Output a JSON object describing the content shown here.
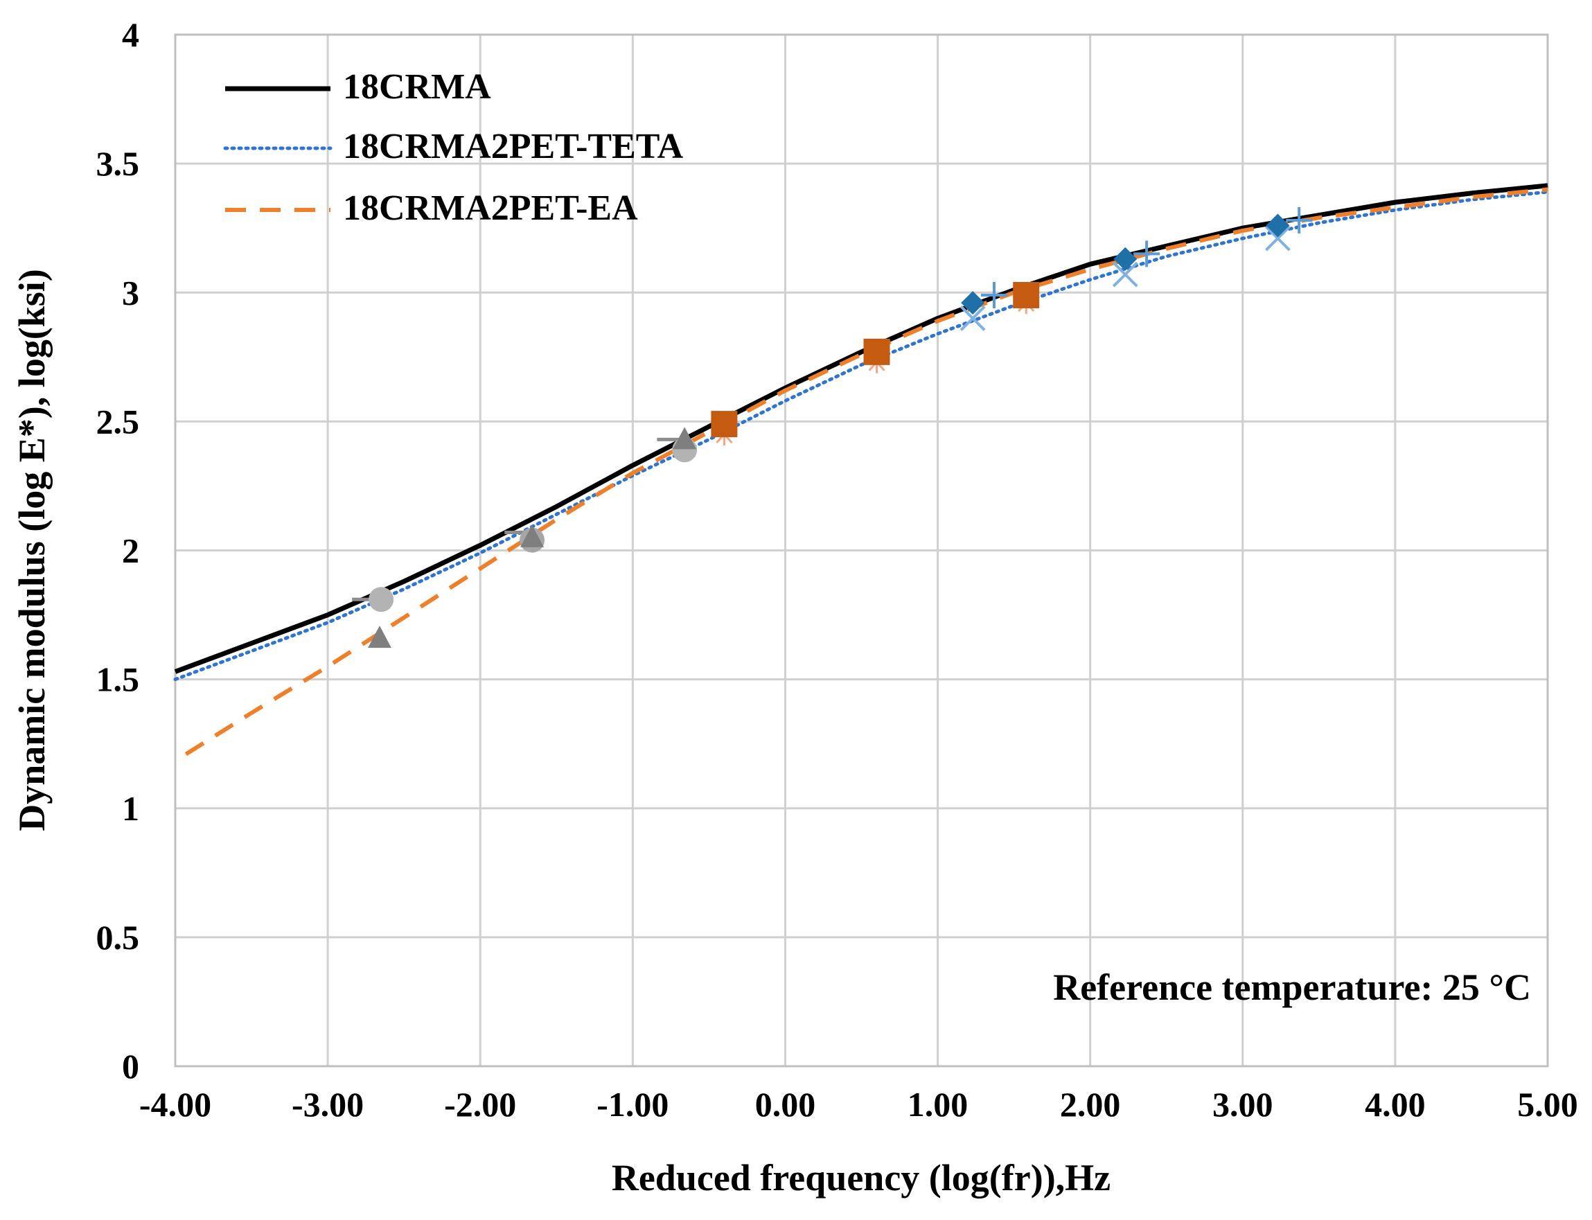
{
  "chart_data": {
    "type": "line",
    "title": "",
    "xlabel": "Reduced frequency (log(fr)),Hz",
    "ylabel": "Dynamic modulus (log E*), log(ksi)",
    "xlim": [
      -4,
      5
    ],
    "ylim": [
      0,
      4
    ],
    "x_ticks": [
      "-4.00",
      "-3.00",
      "-2.00",
      "-1.00",
      "0.00",
      "1.00",
      "2.00",
      "3.00",
      "4.00",
      "5.00"
    ],
    "y_ticks": [
      "0",
      "0.5",
      "1",
      "1.5",
      "2",
      "2.5",
      "3",
      "3.5",
      "4"
    ],
    "grid": true,
    "legend_position": "top-left",
    "annotation": "Reference temperature: 25 °C",
    "series": [
      {
        "name": "18CRMA",
        "color": "#000000",
        "style": "solid",
        "x": [
          -4,
          -3.5,
          -3,
          -2.5,
          -2,
          -1.5,
          -1,
          -0.5,
          0,
          0.5,
          1,
          1.5,
          2,
          2.5,
          3,
          3.5,
          4,
          4.5,
          5
        ],
        "y": [
          1.53,
          1.64,
          1.75,
          1.88,
          2.02,
          2.17,
          2.33,
          2.48,
          2.63,
          2.77,
          2.9,
          3.01,
          3.11,
          3.18,
          3.25,
          3.3,
          3.35,
          3.385,
          3.415
        ]
      },
      {
        "name": "18CRMA2PET-TETA",
        "color": "#2f75d0",
        "style": "dotted",
        "x": [
          -4,
          -3.5,
          -3,
          -2.5,
          -2,
          -1.5,
          -1,
          -0.5,
          0,
          0.5,
          1,
          1.5,
          2,
          2.5,
          3,
          3.5,
          4,
          4.5,
          5
        ],
        "y": [
          1.5,
          1.61,
          1.72,
          1.85,
          1.99,
          2.14,
          2.29,
          2.43,
          2.58,
          2.72,
          2.84,
          2.95,
          3.05,
          3.14,
          3.21,
          3.27,
          3.32,
          3.36,
          3.39
        ]
      },
      {
        "name": "18CRMA2PET-EA",
        "color": "#f07f2a",
        "style": "dashed",
        "x": [
          -3.93,
          -3.5,
          -3,
          -2.5,
          -2,
          -1.5,
          -1,
          -0.5,
          0,
          0.5,
          1,
          1.5,
          2,
          2.5,
          3,
          3.5,
          4,
          4.5,
          5
        ],
        "y": [
          1.21,
          1.37,
          1.55,
          1.74,
          1.93,
          2.12,
          2.3,
          2.46,
          2.62,
          2.76,
          2.89,
          3.0,
          3.09,
          3.17,
          3.24,
          3.29,
          3.33,
          3.37,
          3.4
        ]
      }
    ],
    "markers": [
      {
        "name": "ea-square-1",
        "shape": "square",
        "color": "#c55a11",
        "x": -0.4,
        "y": 2.49
      },
      {
        "name": "ea-square-2",
        "shape": "square",
        "color": "#c55a11",
        "x": 0.6,
        "y": 2.77
      },
      {
        "name": "ea-square-3",
        "shape": "square",
        "color": "#c55a11",
        "x": 1.58,
        "y": 2.99
      },
      {
        "name": "ea-star-1",
        "shape": "star",
        "color": "#f4a582",
        "x": -0.4,
        "y": 2.45
      },
      {
        "name": "ea-star-2",
        "shape": "star",
        "color": "#f4a582",
        "x": 0.6,
        "y": 2.73
      },
      {
        "name": "ea-star-3",
        "shape": "star",
        "color": "#f4a582",
        "x": 1.58,
        "y": 2.96
      },
      {
        "name": "diamond-1",
        "shape": "diamond",
        "color": "#1f6fa8",
        "x": 1.23,
        "y": 2.96
      },
      {
        "name": "diamond-2",
        "shape": "diamond",
        "color": "#1f6fa8",
        "x": 2.23,
        "y": 3.13
      },
      {
        "name": "diamond-3",
        "shape": "diamond",
        "color": "#1f6fa8",
        "x": 3.23,
        "y": 3.26
      },
      {
        "name": "plus-1",
        "shape": "plus",
        "color": "#5b9bd5",
        "x": 1.37,
        "y": 2.99
      },
      {
        "name": "plus-2",
        "shape": "plus",
        "color": "#5b9bd5",
        "x": 2.37,
        "y": 3.15
      },
      {
        "name": "plus-3",
        "shape": "plus",
        "color": "#5b9bd5",
        "x": 3.37,
        "y": 3.28
      },
      {
        "name": "x-1",
        "shape": "x",
        "color": "#7fb2e0",
        "x": 1.23,
        "y": 2.9
      },
      {
        "name": "x-2",
        "shape": "x",
        "color": "#7fb2e0",
        "x": 2.23,
        "y": 3.07
      },
      {
        "name": "x-3",
        "shape": "x",
        "color": "#7fb2e0",
        "x": 3.23,
        "y": 3.21
      },
      {
        "name": "circle-1",
        "shape": "circle",
        "color": "#b3b3b3",
        "x": -2.65,
        "y": 1.81
      },
      {
        "name": "circle-2",
        "shape": "circle",
        "color": "#a6a6a6",
        "x": -1.66,
        "y": 2.04
      },
      {
        "name": "circle-3",
        "shape": "circle",
        "color": "#b3b3b3",
        "x": -0.66,
        "y": 2.39
      },
      {
        "name": "triangle-1",
        "shape": "triangle",
        "color": "#7f7f7f",
        "x": -2.66,
        "y": 1.66
      },
      {
        "name": "triangle-2",
        "shape": "triangle",
        "color": "#7f7f7f",
        "x": -1.66,
        "y": 2.05
      },
      {
        "name": "triangle-3",
        "shape": "triangle",
        "color": "#7f7f7f",
        "x": -0.66,
        "y": 2.43
      },
      {
        "name": "dash-1",
        "shape": "dash",
        "color": "#8c8c8c",
        "x": -2.75,
        "y": 1.81
      },
      {
        "name": "dash-2",
        "shape": "dash",
        "color": "#8c8c8c",
        "x": -1.75,
        "y": 2.07
      },
      {
        "name": "dash-3",
        "shape": "dash",
        "color": "#8c8c8c",
        "x": -0.75,
        "y": 2.43
      }
    ]
  }
}
